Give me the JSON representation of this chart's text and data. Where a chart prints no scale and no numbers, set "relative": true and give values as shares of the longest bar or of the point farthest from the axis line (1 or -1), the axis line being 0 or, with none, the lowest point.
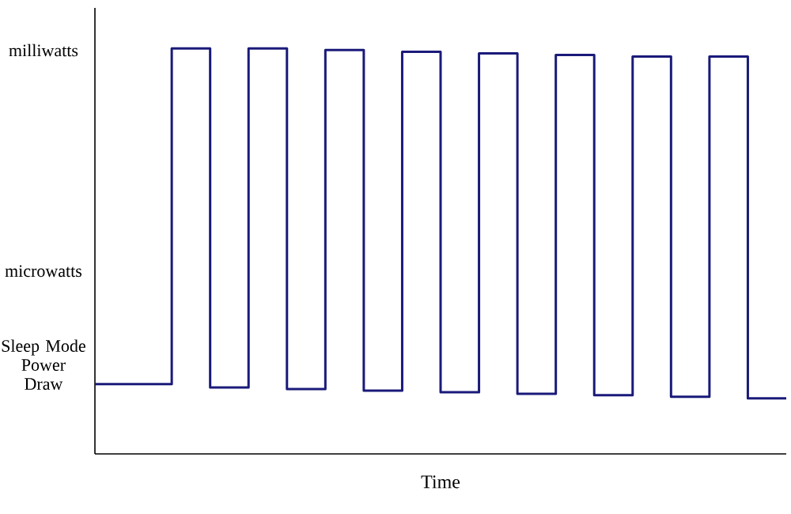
{
  "chart_data": {
    "type": "step",
    "relative": true,
    "xlabel": "Time",
    "categories": [
      null,
      null,
      null,
      null,
      null,
      null,
      null,
      null,
      null,
      null,
      null,
      null,
      null,
      null,
      null,
      null,
      null,
      null,
      null
    ],
    "values": [
      0.172,
      0.172,
      1,
      0.164,
      1,
      0.16,
      0.996,
      0.156,
      0.992,
      0.152,
      0.988,
      0.148,
      0.984,
      0.145,
      0.98,
      0.141,
      0.98,
      0.137,
      0.137
    ],
    "color": "#1a1a7a",
    "annotations": [
      "milliwatts",
      "microwatts",
      "Sleep Mode Power Draw"
    ]
  }
}
